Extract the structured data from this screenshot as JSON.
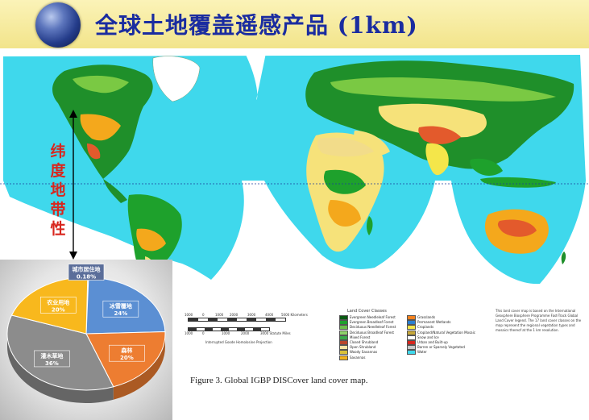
{
  "header": {
    "title": "全球土地覆盖遥感产品 (1km)"
  },
  "map": {
    "side_label": [
      "纬",
      "度",
      "地",
      "带",
      "性"
    ],
    "ocean_color": "#3fd8ec",
    "land_colors": [
      "#1f8f2a",
      "#7ac943",
      "#f4a81c",
      "#f6e27a",
      "#e35a2c",
      "#ffffff"
    ],
    "caption": "Figure 3.   Global IGBP DISCover land cover map.",
    "legend": {
      "title": "Land Cover Classes",
      "items": [
        {
          "label": "Evergreen Needleleaf Forest",
          "color": "#0a5a12"
        },
        {
          "label": "Evergreen Broadleaf Forest",
          "color": "#1ea12c"
        },
        {
          "label": "Deciduous Needleleaf Forest",
          "color": "#6cc04a"
        },
        {
          "label": "Deciduous Broadleaf Forest",
          "color": "#8ed16a"
        },
        {
          "label": "Mixed Forest",
          "color": "#3aa94a"
        },
        {
          "label": "Closed Shrubland",
          "color": "#b8452a"
        },
        {
          "label": "Open Shrubland",
          "color": "#f7e3a2"
        },
        {
          "label": "Woody Savannas",
          "color": "#d9c13a"
        },
        {
          "label": "Savannas",
          "color": "#f2b21c"
        },
        {
          "label": "Grasslands",
          "color": "#f4821e"
        },
        {
          "label": "Permanent Wetlands",
          "color": "#2a7fd0"
        },
        {
          "label": "Croplands",
          "color": "#f4e64a"
        },
        {
          "label": "Cropland/Natural Vegetation Mosaic",
          "color": "#c7a83a"
        },
        {
          "label": "Snow and Ice",
          "color": "#ffffff"
        },
        {
          "label": "Urban and Built-up",
          "color": "#d8261e"
        },
        {
          "label": "Barren or Sparsely Vegetated",
          "color": "#c9c9c9"
        },
        {
          "label": "Water",
          "color": "#3fd8ec"
        }
      ],
      "scale_km": [
        "1000",
        "0",
        "1000",
        "2000",
        "3000",
        "4000",
        "5000 Kilometers"
      ],
      "scale_mi": [
        "1000",
        "0",
        "1000",
        "2000",
        "3000 Statute Miles"
      ],
      "projection": "Interrupted Goode Homolosine Projection",
      "note": "This land cover map is based on the International Geosphere Biosphere Programme Fast-Track Global Land Cover legend. The 17 land cover classes on the map represent the regional vegetation types and mosaics thereof at the 1 km resolution."
    }
  },
  "chart_data": {
    "type": "pie",
    "title": "",
    "slices": [
      {
        "label": "城市居住地",
        "value": 0.18,
        "display": "0.18%",
        "color": "#5b6e9a"
      },
      {
        "label": "冰雪覆地",
        "value": 24,
        "display": "24%",
        "color": "#5b8fd3"
      },
      {
        "label": "森林",
        "value": 20,
        "display": "20%",
        "color": "#ed7d31"
      },
      {
        "label": "灌木草地",
        "value": 36,
        "display": "36%",
        "color": "#8c8c8c"
      },
      {
        "label": "农业用地",
        "value": 20,
        "display": "20%",
        "color": "#f8b81d"
      }
    ]
  }
}
